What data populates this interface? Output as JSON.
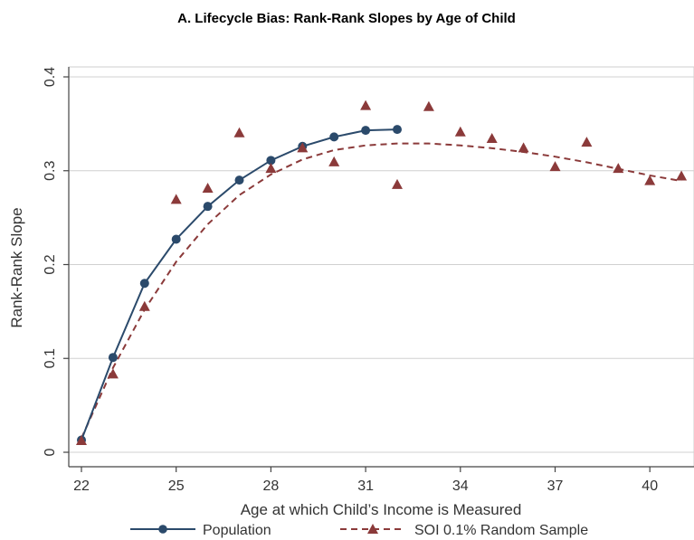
{
  "chart_data": {
    "type": "line",
    "title": "A. Lifecycle Bias: Rank-Rank Slopes by Age of Child",
    "xlabel": "Age at which Child’s Income is Measured",
    "ylabel": "Rank-Rank Slope",
    "xlim": [
      22,
      41.3
    ],
    "ylim": [
      0,
      0.4
    ],
    "x_ticks": [
      22,
      25,
      28,
      31,
      34,
      37,
      40
    ],
    "y_ticks": [
      0,
      0.1,
      0.2,
      0.3,
      0.4
    ],
    "x_tick_labels": [
      "22",
      "25",
      "28",
      "31",
      "34",
      "37",
      "40"
    ],
    "y_tick_labels": [
      "0",
      "0.1",
      "0.2",
      "0.3",
      "0.4"
    ],
    "grid": "horizontal",
    "legend_position": "bottom",
    "series": [
      {
        "name": "Population",
        "style": "solid-line-circles",
        "color": "#2b4a6b",
        "x": [
          22,
          23,
          24,
          25,
          26,
          27,
          28,
          29,
          30,
          31,
          32
        ],
        "y": [
          0.013,
          0.101,
          0.18,
          0.227,
          0.262,
          0.29,
          0.311,
          0.326,
          0.336,
          0.343,
          0.344
        ]
      },
      {
        "name": "SOI 0.1% Random Sample",
        "style": "triangles",
        "color": "#8b3a3a",
        "x": [
          22,
          23,
          24,
          25,
          26,
          27,
          28,
          29,
          30,
          31,
          32,
          33,
          34,
          35,
          36,
          37,
          38,
          39,
          40,
          41
        ],
        "y": [
          0.012,
          0.083,
          0.155,
          0.269,
          0.281,
          0.34,
          0.302,
          0.324,
          0.309,
          0.369,
          0.285,
          0.368,
          0.341,
          0.334,
          0.324,
          0.304,
          0.33,
          0.302,
          0.289,
          0.294
        ]
      },
      {
        "name": "SOI 0.1% Random Sample fit",
        "style": "dashed-line",
        "color": "#8b3a3a",
        "x": [
          22,
          23,
          24,
          25,
          26,
          27,
          28,
          29,
          30,
          31,
          32,
          33,
          34,
          35,
          36,
          37,
          38,
          39,
          40,
          41
        ],
        "y": [
          0.015,
          0.09,
          0.152,
          0.203,
          0.243,
          0.274,
          0.296,
          0.312,
          0.322,
          0.327,
          0.329,
          0.329,
          0.327,
          0.324,
          0.32,
          0.315,
          0.309,
          0.302,
          0.295,
          0.289
        ]
      }
    ]
  },
  "legend": {
    "population_label": "Population",
    "soi_label": "SOI 0.1% Random Sample"
  },
  "colors": {
    "background": "#ffffff",
    "grid": "#d0d0d0",
    "axis": "#444444",
    "population": "#2b4a6b",
    "soi": "#8b3a3a"
  }
}
